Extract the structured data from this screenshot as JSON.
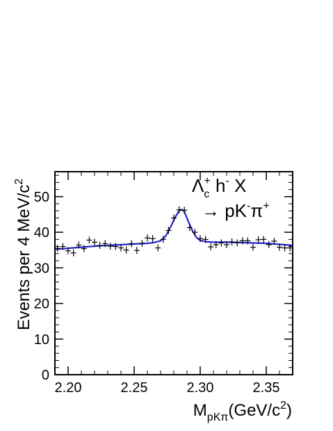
{
  "chart_data": {
    "type": "scatter",
    "title": "",
    "xlabel": {
      "main": "M",
      "sub": "pKπ",
      "rest": "(GeV/c",
      "sup": "2",
      "close": ")"
    },
    "ylabel": {
      "main": "Events per 4 MeV/c",
      "sup": "2"
    },
    "xlim": [
      2.19,
      2.37
    ],
    "ylim": [
      0,
      57
    ],
    "x_ticks": [
      2.2,
      2.25,
      2.3,
      2.35
    ],
    "x_tick_labels": [
      "2.20",
      "2.25",
      "2.30",
      "2.35"
    ],
    "y_ticks": [
      0,
      10,
      20,
      30,
      40,
      50
    ],
    "y_tick_labels": [
      "0",
      "10",
      "20",
      "30",
      "40",
      "50"
    ],
    "annotation": {
      "line1": {
        "lambda": "Λ",
        "sub": "c",
        "sup": "+",
        "h": " h",
        "hsup": "-",
        "x": " X"
      },
      "line2": {
        "arrow": "→ pK",
        "ksup": "-",
        "pi": "π",
        "pisup": "+"
      }
    },
    "series": [
      {
        "marker": "cross",
        "color": "#000000",
        "x": [
          2.192,
          2.196,
          2.2,
          2.204,
          2.208,
          2.212,
          2.216,
          2.22,
          2.224,
          2.228,
          2.232,
          2.236,
          2.24,
          2.244,
          2.248,
          2.252,
          2.256,
          2.26,
          2.264,
          2.268,
          2.272,
          2.276,
          2.28,
          2.284,
          2.288,
          2.292,
          2.296,
          2.3,
          2.304,
          2.308,
          2.312,
          2.316,
          2.32,
          2.324,
          2.328,
          2.332,
          2.336,
          2.34,
          2.344,
          2.348,
          2.352,
          2.356,
          2.36,
          2.364,
          2.368
        ],
        "y": [
          35.5,
          36.0,
          34.8,
          34.2,
          36.4,
          35.4,
          37.8,
          37.2,
          36.3,
          36.8,
          36.1,
          36.0,
          35.6,
          35.0,
          36.8,
          34.9,
          36.9,
          38.4,
          38.2,
          35.6,
          38.0,
          40.5,
          44.0,
          46.3,
          46.2,
          41.3,
          40.0,
          38.2,
          38.0,
          35.9,
          36.5,
          37.0,
          36.5,
          37.3,
          37.0,
          37.6,
          37.6,
          35.8,
          37.9,
          38.0,
          36.5,
          37.5,
          35.8,
          35.6,
          35.6
        ]
      }
    ],
    "fit": {
      "color": "#2222cc",
      "x": [
        2.19,
        2.2,
        2.21,
        2.22,
        2.23,
        2.24,
        2.25,
        2.26,
        2.265,
        2.27,
        2.274,
        2.278,
        2.281,
        2.284,
        2.286,
        2.288,
        2.291,
        2.294,
        2.297,
        2.3,
        2.305,
        2.31,
        2.32,
        2.33,
        2.34,
        2.35,
        2.36,
        2.37
      ],
      "y": [
        35.2,
        35.5,
        35.8,
        36.1,
        36.3,
        36.5,
        36.7,
        36.9,
        37.1,
        37.6,
        39.0,
        41.8,
        44.2,
        46.0,
        46.4,
        45.8,
        43.0,
        40.5,
        38.6,
        37.7,
        37.3,
        37.2,
        37.2,
        37.1,
        37.0,
        36.9,
        36.6,
        36.3
      ]
    }
  }
}
